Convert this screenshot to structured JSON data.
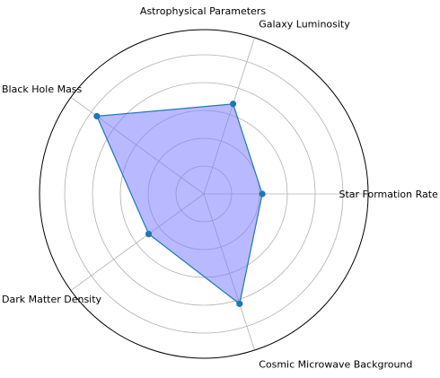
{
  "chart_data": {
    "type": "radar",
    "title": "Astrophysical Parameters",
    "categories": [
      "Star Formation Rate",
      "Galaxy Luminosity",
      "Black Hole Mass",
      "Dark Matter Density",
      "Cosmic Microwave Background"
    ],
    "series": [
      {
        "values": [
          0.42,
          0.68,
          0.95,
          0.49,
          0.83
        ]
      }
    ],
    "rlim": [
      0,
      1
    ],
    "grid": true,
    "colors": {
      "fill": "#8080ff",
      "fill_opacity": 0.55,
      "line": "#1f77b4",
      "marker": "#1f77b4",
      "grid": "#b0b0b0",
      "spine": "#000000"
    }
  }
}
